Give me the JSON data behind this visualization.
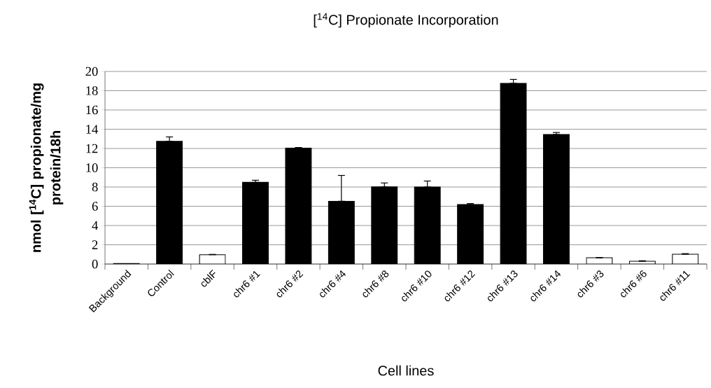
{
  "chart_data": {
    "type": "bar",
    "title": "[$^{14}$C] Propionate Incorporation",
    "xlabel": "Cell lines",
    "ylabel": "nmol [$^{14}$C] propionate/mg protein/18h",
    "categories": [
      "Background",
      "Control",
      "cblF",
      "chr6 #1",
      "chr6 #2",
      "chr6 #4",
      "chr6 #8",
      "chr6 #10",
      "chr6 #12",
      "chr6 #13",
      "chr6 #14",
      "chr6 #3",
      "chr6 #6",
      "chr6 #11"
    ],
    "values": [
      0.05,
      12.75,
      0.97,
      8.48,
      12.05,
      6.52,
      8.02,
      8.0,
      6.18,
      18.76,
      13.45,
      0.65,
      0.29,
      1.02
    ],
    "errors": [
      null,
      [
        12.75,
        13.2
      ],
      [
        0.97,
        1.0
      ],
      [
        8.48,
        8.7
      ],
      [
        12.05,
        12.1
      ],
      [
        6.52,
        9.2
      ],
      [
        8.02,
        8.42
      ],
      [
        8.0,
        8.62
      ],
      [
        6.18,
        6.28
      ],
      [
        18.76,
        19.17
      ],
      [
        13.45,
        13.66
      ],
      [
        0.65,
        0.68
      ],
      [
        0.29,
        0.34
      ],
      [
        1.02,
        1.08
      ]
    ],
    "colors": [
      "#ffffff",
      "#000000",
      "#ffffff",
      "#000000",
      "#000000",
      "#000000",
      "#000000",
      "#000000",
      "#000000",
      "#000000",
      "#000000",
      "#ffffff",
      "#ffffff",
      "#ffffff"
    ],
    "ylim": [
      0,
      20
    ],
    "yticks": [
      0,
      2,
      4,
      6,
      8,
      10,
      12,
      14,
      16,
      18,
      20
    ],
    "grid": "y"
  }
}
